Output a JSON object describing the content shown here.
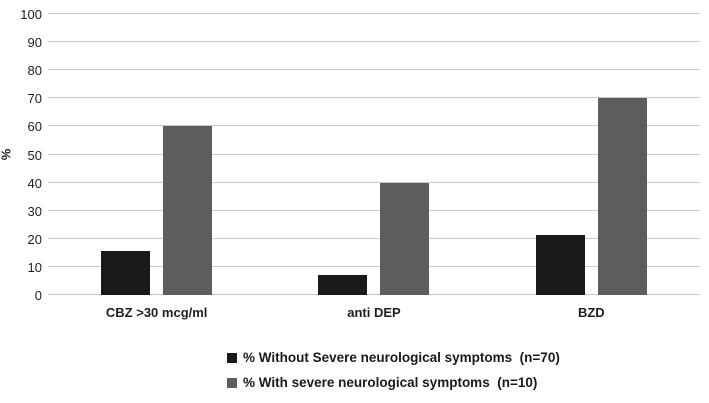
{
  "figure": {
    "background": "#ffffff",
    "text_color": "#1f1f1f"
  },
  "chart_data": {
    "type": "bar",
    "title": "",
    "xlabel": "",
    "ylabel": "%",
    "categories": [
      "CBZ >30 mcg/ml",
      "anti DEP",
      "BZD"
    ],
    "series": [
      {
        "name": "% Without Severe neurological symptoms  (n=70)",
        "color": "#1a1a1a",
        "values": [
          15.7,
          7.1,
          21.4
        ]
      },
      {
        "name": "% With severe neurological symptoms  (n=10)",
        "color": "#5d5d5d",
        "values": [
          60,
          40,
          70
        ]
      }
    ],
    "ylim": [
      0,
      100
    ],
    "ytick_step": 10,
    "ytick_labels": [
      "0",
      "10",
      "20",
      "30",
      "40",
      "50",
      "60",
      "70",
      "80",
      "90",
      "100"
    ],
    "grid": true,
    "gridline_color": "#c9c9c9",
    "legend_position": "bottom-left"
  }
}
